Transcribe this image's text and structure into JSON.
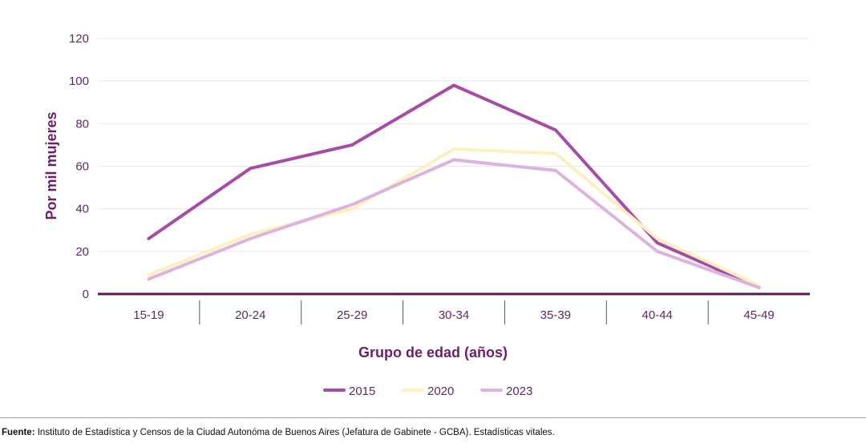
{
  "chart_data": {
    "type": "line",
    "categories": [
      "15-19",
      "20-24",
      "25-29",
      "30-34",
      "35-39",
      "40-44",
      "45-49"
    ],
    "series": [
      {
        "name": "2015",
        "color": "#a64ca6",
        "values": [
          26,
          59,
          70,
          98,
          77,
          24,
          3
        ]
      },
      {
        "name": "2020",
        "color": "#fbf0c0",
        "values": [
          9,
          28,
          40,
          68,
          66,
          26,
          4
        ]
      },
      {
        "name": "2023",
        "color": "#dcb3de",
        "values": [
          7,
          26,
          42,
          63,
          58,
          20,
          3
        ]
      }
    ],
    "title": "",
    "xlabel": "Grupo de edad (años)",
    "ylabel": "Por mil mujeres",
    "yticks": [
      0,
      20,
      40,
      60,
      80,
      100,
      120
    ],
    "ylim": [
      0,
      120
    ],
    "grid": true,
    "legend_position": "bottom-center"
  },
  "colors": {
    "axis": "#5c1458",
    "grid": "#f0e2ee",
    "text": "#5c2a60"
  },
  "source": {
    "label": "Fuente:",
    "text": " Instituto de Estadística y Censos de la Ciudad Autonóma de Buenos Aires (Jefatura de Gabinete - GCBA). Estadísticas vitales."
  }
}
